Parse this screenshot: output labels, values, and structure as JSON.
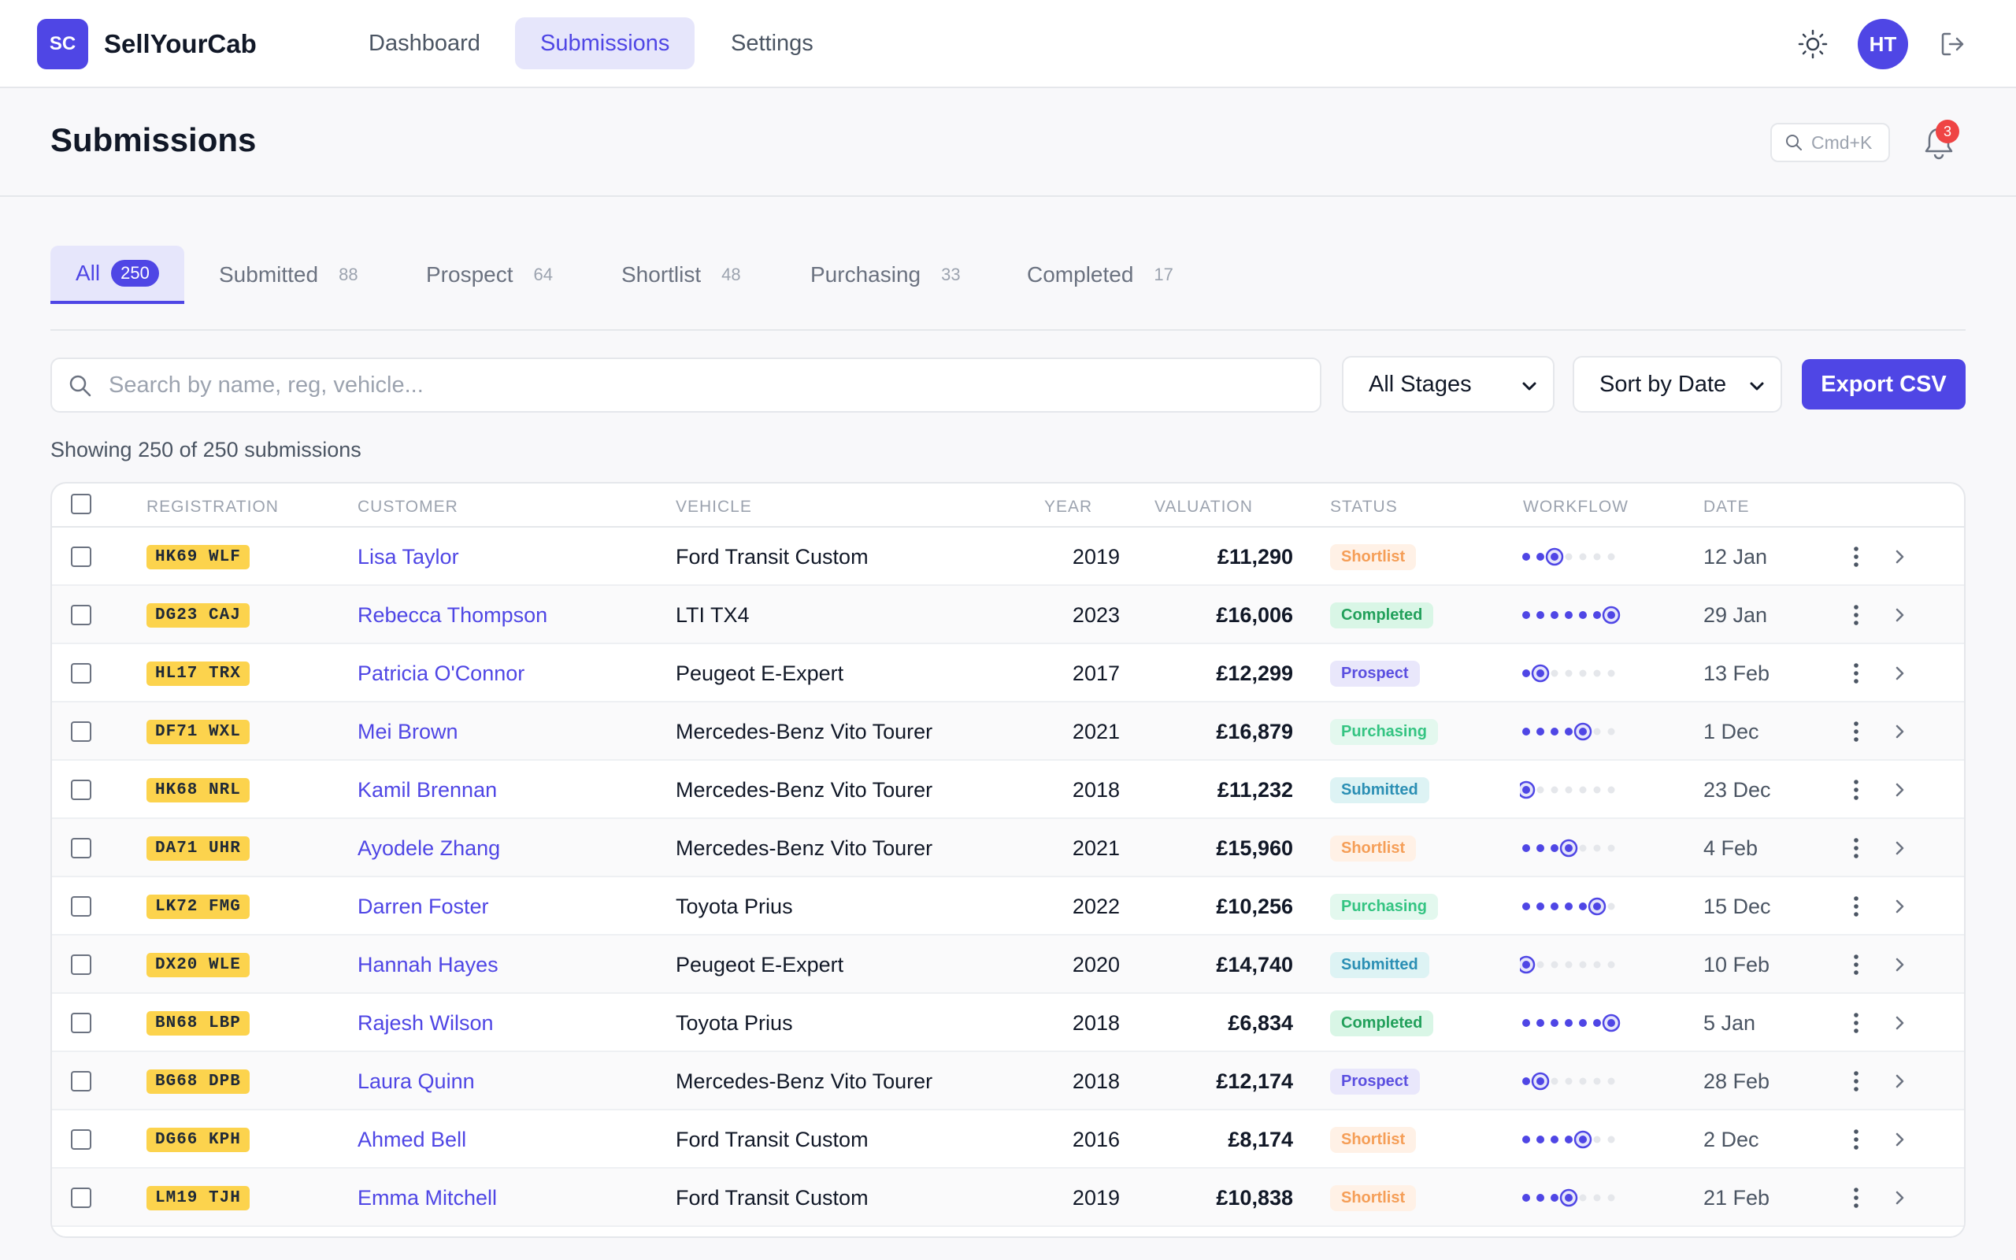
{
  "app": {
    "logo_initials": "SC",
    "name": "SellYourCab",
    "accent": "#4f46e5"
  },
  "nav": {
    "tabs": [
      {
        "label": "Dashboard",
        "active": false
      },
      {
        "label": "Submissions",
        "active": true
      },
      {
        "label": "Settings",
        "active": false
      }
    ],
    "theme_icon": "sun-icon",
    "avatar_initials": "HT",
    "logout_icon": "logout-icon"
  },
  "header": {
    "title": "Submissions",
    "search_shortcut": "Cmd+K",
    "notification_count": "3"
  },
  "filter_tabs": [
    {
      "label": "All",
      "count": "250",
      "active": true
    },
    {
      "label": "Submitted",
      "count": "88",
      "active": false
    },
    {
      "label": "Prospect",
      "count": "64",
      "active": false
    },
    {
      "label": "Shortlist",
      "count": "48",
      "active": false
    },
    {
      "label": "Purchasing",
      "count": "33",
      "active": false
    },
    {
      "label": "Completed",
      "count": "17",
      "active": false
    }
  ],
  "toolbar": {
    "search_placeholder": "Search by name, reg, vehicle...",
    "stage_select": "All Stages",
    "sort_select": "Sort by Date",
    "export_label": "Export CSV"
  },
  "showing_text": "Showing 250 of 250 submissions",
  "table": {
    "columns": [
      "Registration",
      "Customer",
      "Vehicle",
      "Year",
      "Valuation",
      "Status",
      "Workflow",
      "Date"
    ],
    "rows": [
      {
        "reg": "HK69 WLF",
        "customer": "Lisa Taylor",
        "vehicle": "Ford Transit Custom",
        "year": "2019",
        "valuation": "£11,290",
        "status": "Shortlist",
        "workflow_step": 3,
        "date": "12 Jan"
      },
      {
        "reg": "DG23 CAJ",
        "customer": "Rebecca Thompson",
        "vehicle": "LTI TX4",
        "year": "2023",
        "valuation": "£16,006",
        "status": "Completed",
        "workflow_step": 7,
        "date": "29 Jan"
      },
      {
        "reg": "HL17 TRX",
        "customer": "Patricia O'Connor",
        "vehicle": "Peugeot E-Expert",
        "year": "2017",
        "valuation": "£12,299",
        "status": "Prospect",
        "workflow_step": 2,
        "date": "13 Feb"
      },
      {
        "reg": "DF71 WXL",
        "customer": "Mei Brown",
        "vehicle": "Mercedes-Benz Vito Tourer",
        "year": "2021",
        "valuation": "£16,879",
        "status": "Purchasing",
        "workflow_step": 5,
        "date": "1 Dec"
      },
      {
        "reg": "HK68 NRL",
        "customer": "Kamil Brennan",
        "vehicle": "Mercedes-Benz Vito Tourer",
        "year": "2018",
        "valuation": "£11,232",
        "status": "Submitted",
        "workflow_step": 1,
        "date": "23 Dec"
      },
      {
        "reg": "DA71 UHR",
        "customer": "Ayodele Zhang",
        "vehicle": "Mercedes-Benz Vito Tourer",
        "year": "2021",
        "valuation": "£15,960",
        "status": "Shortlist",
        "workflow_step": 4,
        "date": "4 Feb"
      },
      {
        "reg": "LK72 FMG",
        "customer": "Darren Foster",
        "vehicle": "Toyota Prius",
        "year": "2022",
        "valuation": "£10,256",
        "status": "Purchasing",
        "workflow_step": 6,
        "date": "15 Dec"
      },
      {
        "reg": "DX20 WLE",
        "customer": "Hannah Hayes",
        "vehicle": "Peugeot E-Expert",
        "year": "2020",
        "valuation": "£14,740",
        "status": "Submitted",
        "workflow_step": 1,
        "date": "10 Feb"
      },
      {
        "reg": "BN68 LBP",
        "customer": "Rajesh Wilson",
        "vehicle": "Toyota Prius",
        "year": "2018",
        "valuation": "£6,834",
        "status": "Completed",
        "workflow_step": 7,
        "date": "5 Jan"
      },
      {
        "reg": "BG68 DPB",
        "customer": "Laura Quinn",
        "vehicle": "Mercedes-Benz Vito Tourer",
        "year": "2018",
        "valuation": "£12,174",
        "status": "Prospect",
        "workflow_step": 2,
        "date": "28 Feb"
      },
      {
        "reg": "DG66 KPH",
        "customer": "Ahmed Bell",
        "vehicle": "Ford Transit Custom",
        "year": "2016",
        "valuation": "£8,174",
        "status": "Shortlist",
        "workflow_step": 5,
        "date": "2 Dec"
      },
      {
        "reg": "LM19 TJH",
        "customer": "Emma Mitchell",
        "vehicle": "Ford Transit Custom",
        "year": "2019",
        "valuation": "£10,838",
        "status": "Shortlist",
        "workflow_step": 4,
        "date": "21 Feb"
      }
    ]
  }
}
